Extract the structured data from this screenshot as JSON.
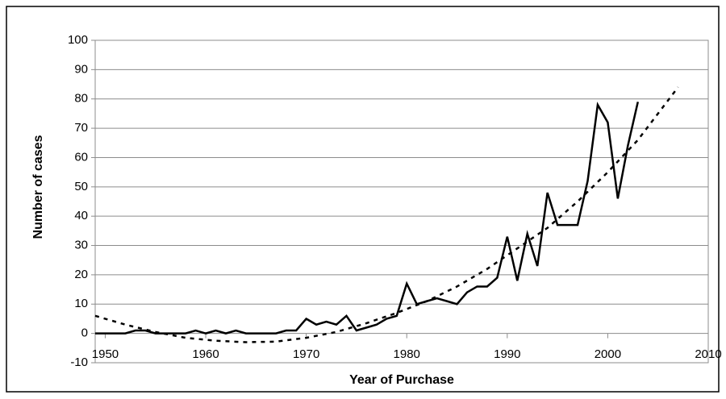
{
  "chart_data": {
    "type": "line",
    "x_label": "Year of Purchase",
    "y_label": "Number of cases",
    "series": [
      {
        "color": "#000000",
        "style": "solid",
        "x": [
          1949,
          1950,
          1951,
          1952,
          1953,
          1954,
          1955,
          1956,
          1957,
          1958,
          1959,
          1960,
          1961,
          1962,
          1963,
          1964,
          1965,
          1966,
          1967,
          1968,
          1969,
          1970,
          1971,
          1972,
          1973,
          1974,
          1975,
          1976,
          1977,
          1978,
          1979,
          1980,
          1981,
          1982,
          1983,
          1984,
          1985,
          1986,
          1987,
          1988,
          1989,
          1990,
          1991,
          1992,
          1993,
          1994,
          1995,
          1996,
          1997,
          1998,
          1999,
          2000,
          2001,
          2002,
          2003
        ],
        "values": [
          0,
          0,
          0,
          0,
          1,
          1,
          0,
          0,
          0,
          0,
          1,
          0,
          1,
          0,
          1,
          0,
          0,
          0,
          0,
          1,
          1,
          5,
          3,
          4,
          3,
          6,
          1,
          2,
          3,
          5,
          6,
          17,
          10,
          11,
          12,
          11,
          10,
          14,
          16,
          16,
          19,
          33,
          18,
          34,
          23,
          48,
          37,
          37,
          37,
          52,
          78,
          72,
          46,
          64,
          79
        ]
      },
      {
        "color": "#000000",
        "style": "dashed",
        "x": [
          1949,
          1952,
          1955,
          1958,
          1961,
          1964,
          1967,
          1970,
          1973,
          1976,
          1979,
          1982,
          1985,
          1988,
          1991,
          1994,
          1997,
          2000,
          2003,
          2007
        ],
        "values": [
          6,
          3,
          0.5,
          -1.5,
          -2.5,
          -3,
          -2.8,
          -1.5,
          0.5,
          3.5,
          7,
          11,
          16,
          22,
          29,
          36,
          45,
          55,
          66,
          84
        ]
      }
    ],
    "xlim": [
      1949,
      2010
    ],
    "xticks": [
      1950,
      1960,
      1970,
      1980,
      1990,
      2000,
      2010
    ],
    "ylim": [
      -10,
      100
    ],
    "yticks": [
      -10,
      0,
      10,
      20,
      30,
      40,
      50,
      60,
      70,
      80,
      90,
      100
    ],
    "grid": true
  }
}
